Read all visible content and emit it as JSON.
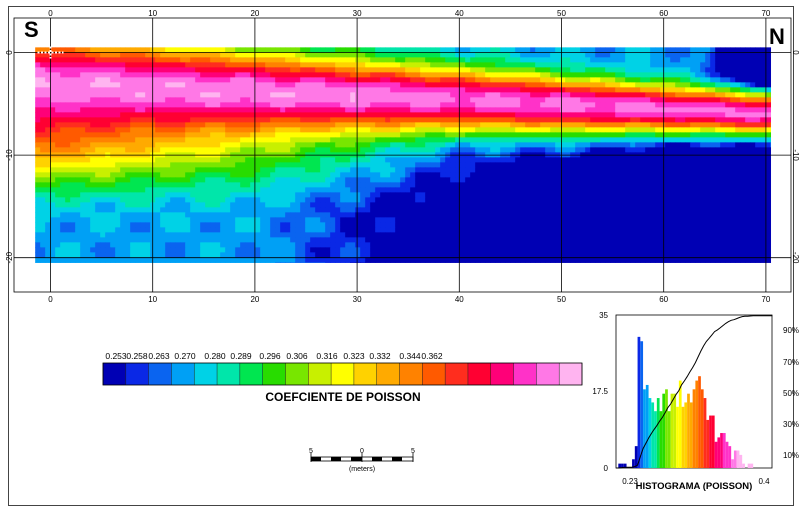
{
  "section": {
    "south_label": "S",
    "north_label": "N",
    "x_ticks": [
      "0",
      "10",
      "20",
      "30",
      "40",
      "50",
      "60",
      "70"
    ],
    "y_ticks": [
      "0",
      "-10",
      "-20"
    ]
  },
  "colorbar": {
    "title": "COEFCIENTE DE POISSON",
    "tick_labels": [
      "0.253",
      "0.258",
      "0.263",
      "0.270",
      "0.280",
      "0.289",
      "0.296",
      "0.306",
      "0.316",
      "0.323",
      "0.332",
      "0.344",
      "0.362"
    ],
    "colors": [
      "#0000b4",
      "#0a28e6",
      "#0a64f0",
      "#00a0f5",
      "#00d2e6",
      "#00e6aa",
      "#00e650",
      "#28dc00",
      "#78e600",
      "#c8f000",
      "#ffff00",
      "#ffd200",
      "#ffaa00",
      "#ff8200",
      "#ff5a00",
      "#ff2d1e",
      "#ff0032",
      "#ff0078",
      "#ff32c8",
      "#ff78e6",
      "#ffb4f0"
    ]
  },
  "scalebar": {
    "labels": [
      "5",
      "0",
      "5"
    ],
    "units": "(meters)"
  },
  "histogram": {
    "title": "HISTOGRAMA (POISSON)",
    "y_ticks": [
      "35",
      "17.5",
      "0"
    ],
    "x_ticks": [
      "0.23",
      "0.4"
    ],
    "pct_ticks": [
      "90%",
      "70%",
      "50%",
      "30%",
      "10%"
    ]
  },
  "chart_data": [
    {
      "type": "heatmap",
      "title": "",
      "xlabel": "",
      "ylabel": "",
      "xlim": [
        -1.5,
        70.5
      ],
      "ylim": [
        -20.5,
        0.5
      ],
      "x_ticks": [
        0,
        10,
        20,
        30,
        40,
        50,
        60,
        70
      ],
      "y_ticks": [
        0,
        -10,
        -20
      ],
      "grid": true,
      "description_values": "Poisson ratio cross-section along profile S-N: high values (~0.34-0.36) in a band near -3 m thinning northward; low values (~0.25) near x=60, y=-16 and at top-right corner."
    },
    {
      "type": "bar",
      "title": "HISTOGRAMA (POISSON)",
      "xlim": [
        0.23,
        0.4
      ],
      "ylim": [
        0,
        35
      ],
      "bins_x": [
        0.231,
        0.234,
        0.237,
        0.24,
        0.243,
        0.246,
        0.249,
        0.252,
        0.255,
        0.258,
        0.261,
        0.264,
        0.267,
        0.27,
        0.273,
        0.276,
        0.279,
        0.282,
        0.285,
        0.288,
        0.291,
        0.294,
        0.297,
        0.3,
        0.303,
        0.306,
        0.309,
        0.312,
        0.315,
        0.318,
        0.321,
        0.324,
        0.327,
        0.33,
        0.333,
        0.336,
        0.339,
        0.342,
        0.345,
        0.348,
        0.351,
        0.354,
        0.357,
        0.36,
        0.363,
        0.366,
        0.369,
        0.372,
        0.375,
        0.378,
        0.381,
        0.384,
        0.387,
        0.39,
        0.393,
        0.396,
        0.399
      ],
      "counts": [
        0,
        1,
        1,
        1,
        0,
        0,
        2,
        5,
        30,
        29,
        18,
        19,
        16,
        15,
        13,
        16,
        13,
        17,
        18,
        13,
        17,
        17,
        14,
        20,
        14,
        15,
        17,
        15,
        18,
        20,
        21,
        18,
        16,
        11,
        12,
        12,
        6,
        7,
        8,
        8,
        6,
        5,
        2,
        4,
        4,
        3,
        1,
        0,
        1,
        1,
        0,
        0,
        0,
        0,
        0,
        0,
        0
      ],
      "cumulative_pct_axis": [
        10,
        30,
        50,
        70,
        90
      ]
    }
  ]
}
